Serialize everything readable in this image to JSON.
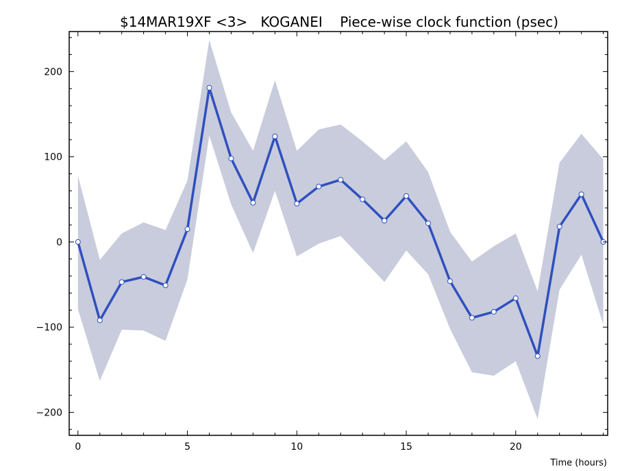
{
  "chart_data": {
    "type": "line",
    "title": "$14MAR19XF <3>   KOGANEI    Piece-wise clock function (psec)",
    "xlabel": "Time (hours)",
    "ylabel": "",
    "xlim": [
      -0.4,
      24.2
    ],
    "ylim": [
      -227,
      247
    ],
    "xticks": [
      0,
      5,
      10,
      15,
      20
    ],
    "yticks": [
      -200,
      -100,
      0,
      100,
      200
    ],
    "grid": false,
    "legend": "none",
    "colors": {
      "line": "#2f4fbf",
      "band": "#c8ccdc",
      "marker_fill": "#ffffff",
      "marker_stroke": "#2f4fbf"
    },
    "x": [
      0,
      1,
      2,
      3,
      4,
      5,
      6,
      7,
      8,
      9,
      10,
      11,
      12,
      13,
      14,
      15,
      16,
      17,
      18,
      19,
      20,
      21,
      22,
      23,
      24
    ],
    "series": [
      {
        "values": [
          0,
          -92,
          -47,
          -41,
          -51,
          15,
          181,
          98,
          46,
          124,
          45,
          65,
          73,
          50,
          25,
          54,
          22,
          -46,
          -89,
          -82,
          -66,
          -134,
          18,
          56,
          0
        ],
        "upper": [
          78,
          -21,
          10,
          23,
          14,
          72,
          237,
          152,
          107,
          190,
          107,
          132,
          138,
          118,
          96,
          118,
          82,
          12,
          -23,
          -5,
          10,
          -58,
          93,
          127,
          97
        ],
        "lower": [
          -79,
          -163,
          -103,
          -104,
          -116,
          -44,
          125,
          44,
          -13,
          60,
          -17,
          -2,
          7,
          -20,
          -47,
          -10,
          -38,
          -102,
          -153,
          -157,
          -140,
          -208,
          -56,
          -15,
          -97
        ]
      }
    ]
  }
}
